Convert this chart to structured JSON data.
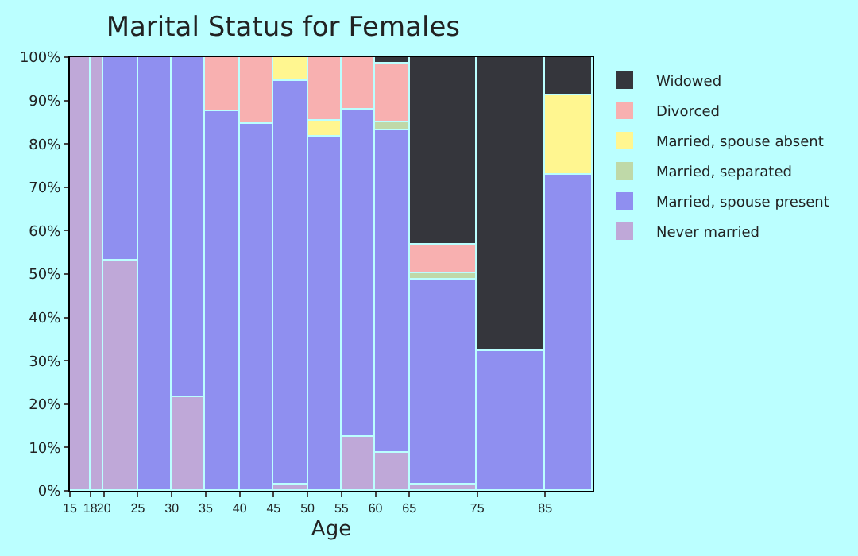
{
  "chart_data": {
    "type": "bar",
    "stacked": true,
    "title": "Marital Status for Females",
    "xlabel": "Age",
    "x": [
      16.5,
      19,
      22.5,
      27.5,
      32.5,
      37.5,
      42.5,
      47.5,
      52.5,
      57.5,
      62.5,
      70,
      80,
      88.5
    ],
    "xlim": [
      15,
      92
    ],
    "xticks": [
      15,
      18,
      20,
      25,
      30,
      35,
      40,
      45,
      50,
      55,
      60,
      65,
      75,
      85
    ],
    "ylim": [
      0,
      100
    ],
    "yticks": [
      {
        "value": 0,
        "label": "0%"
      },
      {
        "value": 10,
        "label": "10%"
      },
      {
        "value": 20,
        "label": "20%"
      },
      {
        "value": 30,
        "label": "30%"
      },
      {
        "value": 40,
        "label": "40%"
      },
      {
        "value": 50,
        "label": "50%"
      },
      {
        "value": 60,
        "label": "60%"
      },
      {
        "value": 70,
        "label": "70%"
      },
      {
        "value": 80,
        "label": "80%"
      },
      {
        "value": 90,
        "label": "90%"
      },
      {
        "value": 100,
        "label": "100%"
      }
    ],
    "legend": "right",
    "series": [
      {
        "name": "Never married",
        "color": "#bfa8d8",
        "values": [
          100,
          100,
          53.1,
          null,
          21.5,
          null,
          null,
          1.3,
          null,
          12.4,
          8.7,
          1.3,
          null,
          null
        ]
      },
      {
        "name": "Married, spouse present",
        "color": "#8f8ff0",
        "values": [
          null,
          null,
          46.9,
          100,
          78.5,
          87.6,
          84.7,
          93.3,
          81.8,
          75.6,
          74.5,
          47.4,
          32.2,
          72.9
        ]
      },
      {
        "name": "Married, separated",
        "color": "#bfd9a8",
        "values": [
          null,
          null,
          null,
          null,
          null,
          null,
          null,
          null,
          null,
          null,
          1.9,
          1.4,
          null,
          null
        ]
      },
      {
        "name": "Married, spouse absent",
        "color": "#fff690",
        "values": [
          null,
          null,
          null,
          null,
          null,
          null,
          null,
          5.4,
          3.6,
          null,
          null,
          null,
          null,
          18.4
        ]
      },
      {
        "name": "Divorced",
        "color": "#f8b0b0",
        "values": [
          null,
          null,
          null,
          null,
          null,
          12.4,
          15.3,
          null,
          14.6,
          12.0,
          13.6,
          6.7,
          null,
          null
        ]
      },
      {
        "name": "Widowed",
        "color": "#35363c",
        "values": [
          null,
          null,
          null,
          null,
          null,
          null,
          null,
          null,
          null,
          null,
          1.3,
          43.2,
          67.8,
          8.7
        ]
      }
    ]
  }
}
